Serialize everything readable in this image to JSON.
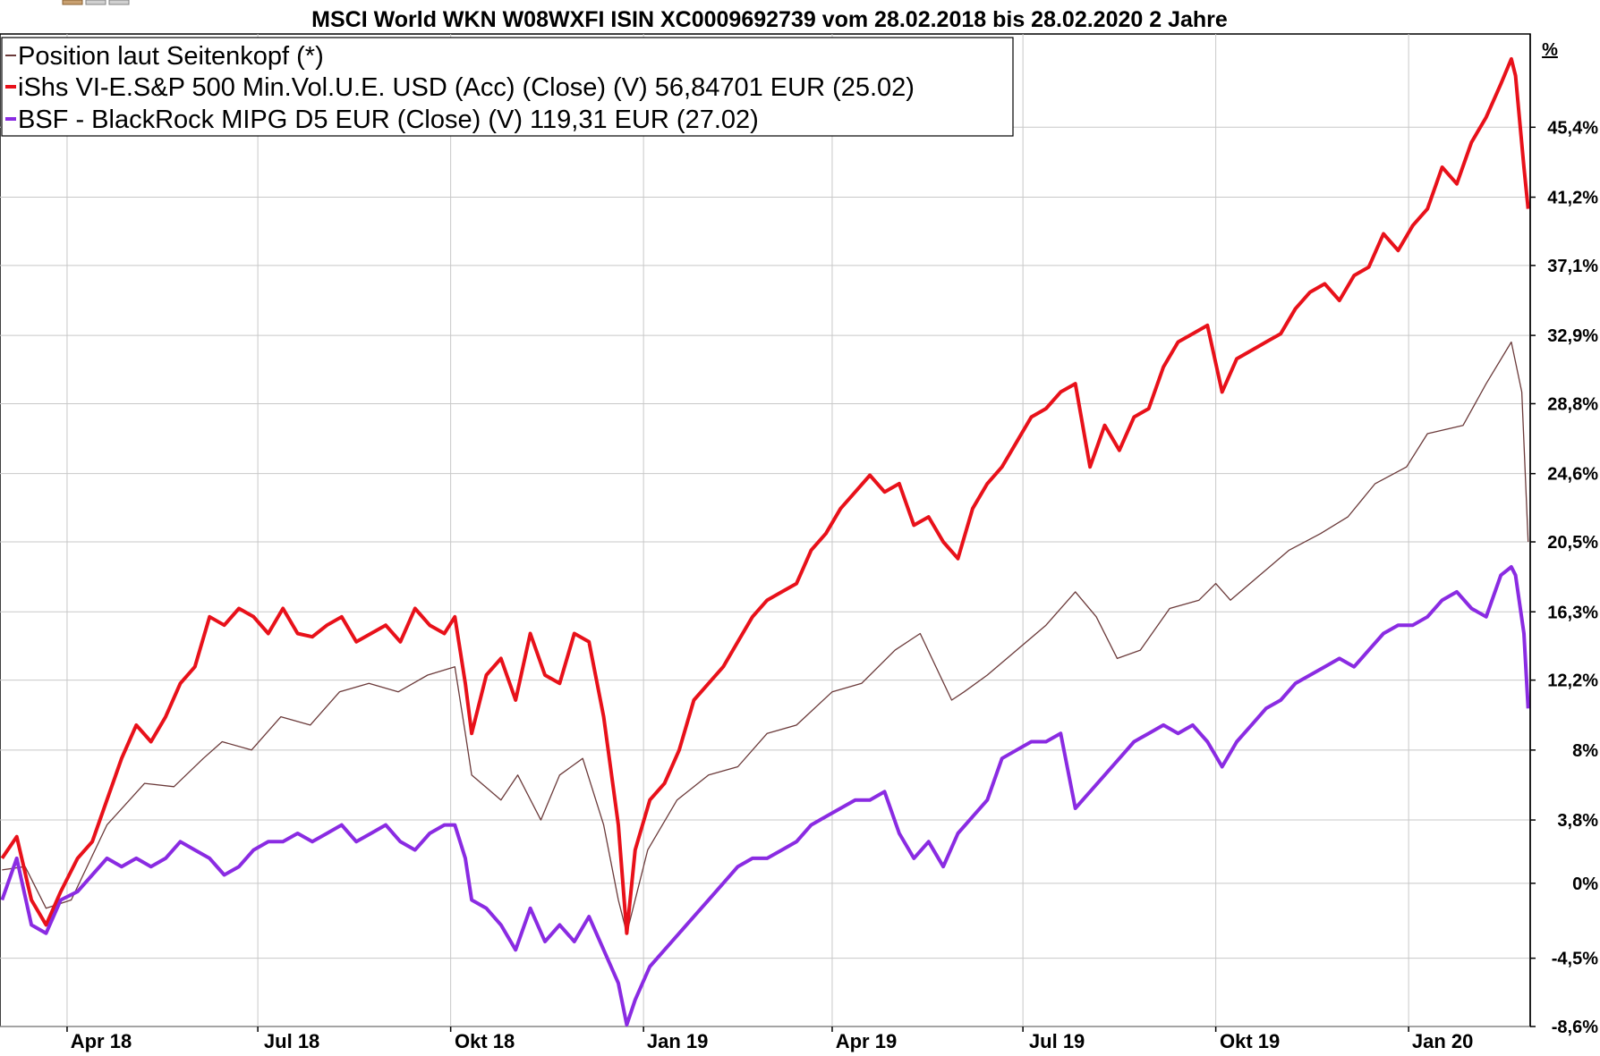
{
  "chart_data": {
    "type": "line",
    "title": "MSCI World WKN W08WXFI ISIN XC0009692739 vom 28.02.2018 bis 28.02.2020 2 Jahre",
    "y_unit": "%",
    "ylim": [
      -8.6,
      51.0
    ],
    "y_ticks": [
      "45,4%",
      "41,2%",
      "37,1%",
      "32,9%",
      "28,8%",
      "24,6%",
      "20,5%",
      "16,3%",
      "12,2%",
      "8%",
      "3,8%",
      "0%",
      "-4,5%",
      "-8,6%"
    ],
    "x_ticks": [
      "Apr 18",
      "Jul 18",
      "Okt 18",
      "Jan 19",
      "Apr 19",
      "Jul 19",
      "Okt 19",
      "Jan 20"
    ],
    "xlim": [
      "2018-02-28",
      "2020-02-28"
    ],
    "grid": true,
    "legend_position": "top-left",
    "legend": [
      {
        "label": "Position laut Seitenkopf (*)",
        "color": "#6b3a3a"
      },
      {
        "label": "iShs VI-E.S&P 500 Min.Vol.U.E. USD (Acc) (Close) (V) 56,84701 EUR (25.02)",
        "color": "#e8111a"
      },
      {
        "label": "BSF - BlackRock MIPG D5 EUR (Close) (V) 119,31 EUR (27.02)",
        "color": "#8a2be2"
      }
    ],
    "series": [
      {
        "name": "Position laut Seitenkopf (*)",
        "color": "#6b3a3a",
        "x": [
          "2018-03-01",
          "2018-03-12",
          "2018-03-22",
          "2018-04-03",
          "2018-04-20",
          "2018-05-08",
          "2018-05-22",
          "2018-06-05",
          "2018-06-14",
          "2018-06-28",
          "2018-07-12",
          "2018-07-26",
          "2018-08-09",
          "2018-08-23",
          "2018-09-06",
          "2018-09-20",
          "2018-10-03",
          "2018-10-08",
          "2018-10-11",
          "2018-10-25",
          "2018-11-02",
          "2018-11-13",
          "2018-11-22",
          "2018-12-03",
          "2018-12-13",
          "2018-12-20",
          "2018-12-24",
          "2019-01-03",
          "2019-01-17",
          "2019-02-01",
          "2019-02-15",
          "2019-03-01",
          "2019-03-15",
          "2019-04-01",
          "2019-04-15",
          "2019-05-01",
          "2019-05-13",
          "2019-05-28",
          "2019-06-03",
          "2019-06-14",
          "2019-06-28",
          "2019-07-12",
          "2019-07-26",
          "2019-08-05",
          "2019-08-15",
          "2019-08-26",
          "2019-09-09",
          "2019-09-23",
          "2019-10-01",
          "2019-10-08",
          "2019-10-22",
          "2019-11-05",
          "2019-11-20",
          "2019-12-03",
          "2019-12-16",
          "2019-12-31",
          "2020-01-10",
          "2020-01-27",
          "2020-02-07",
          "2020-02-19",
          "2020-02-24",
          "2020-02-27"
        ],
        "y": [
          0.8,
          1.0,
          -1.5,
          -1.0,
          3.5,
          6.0,
          5.8,
          7.5,
          8.5,
          8.0,
          10.0,
          9.5,
          11.5,
          12.0,
          11.5,
          12.5,
          13.0,
          9.0,
          6.5,
          5.0,
          6.5,
          3.8,
          6.5,
          7.5,
          3.5,
          -1.0,
          -3.0,
          2.0,
          5.0,
          6.5,
          7.0,
          9.0,
          9.5,
          11.5,
          12.0,
          14.0,
          15.0,
          11.0,
          11.5,
          12.5,
          14.0,
          15.5,
          17.5,
          16.0,
          13.5,
          14.0,
          16.5,
          17.0,
          18.0,
          17.0,
          18.5,
          20.0,
          21.0,
          22.0,
          24.0,
          25.0,
          27.0,
          27.5,
          30.0,
          32.5,
          29.5,
          20.5
        ]
      },
      {
        "name": "iShs VI-E.S&P 500 Min.Vol.U.E. USD (Acc) (Close) (V) 56,84701 EUR (25.02)",
        "color": "#e8111a",
        "x": [
          "2018-03-01",
          "2018-03-08",
          "2018-03-15",
          "2018-03-22",
          "2018-03-29",
          "2018-04-06",
          "2018-04-13",
          "2018-04-20",
          "2018-04-27",
          "2018-05-04",
          "2018-05-11",
          "2018-05-18",
          "2018-05-25",
          "2018-06-01",
          "2018-06-08",
          "2018-06-15",
          "2018-06-22",
          "2018-06-29",
          "2018-07-06",
          "2018-07-13",
          "2018-07-20",
          "2018-07-27",
          "2018-08-03",
          "2018-08-10",
          "2018-08-17",
          "2018-08-24",
          "2018-08-31",
          "2018-09-07",
          "2018-09-14",
          "2018-09-21",
          "2018-09-28",
          "2018-10-03",
          "2018-10-08",
          "2018-10-11",
          "2018-10-18",
          "2018-10-25",
          "2018-11-01",
          "2018-11-08",
          "2018-11-15",
          "2018-11-22",
          "2018-11-29",
          "2018-12-06",
          "2018-12-13",
          "2018-12-20",
          "2018-12-24",
          "2018-12-28",
          "2019-01-04",
          "2019-01-11",
          "2019-01-18",
          "2019-01-25",
          "2019-02-01",
          "2019-02-08",
          "2019-02-15",
          "2019-02-22",
          "2019-03-01",
          "2019-03-08",
          "2019-03-15",
          "2019-03-22",
          "2019-03-29",
          "2019-04-05",
          "2019-04-12",
          "2019-04-19",
          "2019-04-26",
          "2019-05-03",
          "2019-05-10",
          "2019-05-17",
          "2019-05-24",
          "2019-05-31",
          "2019-06-07",
          "2019-06-14",
          "2019-06-21",
          "2019-06-28",
          "2019-07-05",
          "2019-07-12",
          "2019-07-19",
          "2019-07-26",
          "2019-08-02",
          "2019-08-09",
          "2019-08-16",
          "2019-08-23",
          "2019-08-30",
          "2019-09-06",
          "2019-09-13",
          "2019-09-20",
          "2019-09-27",
          "2019-10-04",
          "2019-10-11",
          "2019-10-18",
          "2019-10-25",
          "2019-11-01",
          "2019-11-08",
          "2019-11-15",
          "2019-11-22",
          "2019-11-29",
          "2019-12-06",
          "2019-12-13",
          "2019-12-20",
          "2019-12-27",
          "2020-01-03",
          "2020-01-10",
          "2020-01-17",
          "2020-01-24",
          "2020-01-31",
          "2020-02-07",
          "2020-02-14",
          "2020-02-19",
          "2020-02-21",
          "2020-02-25",
          "2020-02-27"
        ],
        "y": [
          1.5,
          2.8,
          -1.0,
          -2.5,
          -0.5,
          1.5,
          2.5,
          5.0,
          7.5,
          9.5,
          8.5,
          10.0,
          12.0,
          13.0,
          16.0,
          15.5,
          16.5,
          16.0,
          15.0,
          16.5,
          15.0,
          14.8,
          15.5,
          16.0,
          14.5,
          15.0,
          15.5,
          14.5,
          16.5,
          15.5,
          15.0,
          16.0,
          12.0,
          9.0,
          12.5,
          13.5,
          11.0,
          15.0,
          12.5,
          12.0,
          15.0,
          14.5,
          10.0,
          3.5,
          -3.0,
          2.0,
          5.0,
          6.0,
          8.0,
          11.0,
          12.0,
          13.0,
          14.5,
          16.0,
          17.0,
          17.5,
          18.0,
          20.0,
          21.0,
          22.5,
          23.5,
          24.5,
          23.5,
          24.0,
          21.5,
          22.0,
          20.5,
          19.5,
          22.5,
          24.0,
          25.0,
          26.5,
          28.0,
          28.5,
          29.5,
          30.0,
          25.0,
          27.5,
          26.0,
          28.0,
          28.5,
          31.0,
          32.5,
          33.0,
          33.5,
          29.5,
          31.5,
          32.0,
          32.5,
          33.0,
          34.5,
          35.5,
          36.0,
          35.0,
          36.5,
          37.0,
          39.0,
          38.0,
          39.5,
          40.5,
          43.0,
          42.0,
          44.5,
          46.0,
          48.0,
          49.5,
          48.5,
          43.0,
          40.5
        ]
      },
      {
        "name": "BSF - BlackRock MIPG D5 EUR (Close) (V) 119,31 EUR (27.02)",
        "color": "#8a2be2",
        "x": [
          "2018-03-01",
          "2018-03-08",
          "2018-03-15",
          "2018-03-22",
          "2018-03-29",
          "2018-04-06",
          "2018-04-13",
          "2018-04-20",
          "2018-04-27",
          "2018-05-04",
          "2018-05-11",
          "2018-05-18",
          "2018-05-25",
          "2018-06-01",
          "2018-06-08",
          "2018-06-15",
          "2018-06-22",
          "2018-06-29",
          "2018-07-06",
          "2018-07-13",
          "2018-07-20",
          "2018-07-27",
          "2018-08-03",
          "2018-08-10",
          "2018-08-17",
          "2018-08-24",
          "2018-08-31",
          "2018-09-07",
          "2018-09-14",
          "2018-09-21",
          "2018-09-28",
          "2018-10-03",
          "2018-10-08",
          "2018-10-11",
          "2018-10-18",
          "2018-10-25",
          "2018-11-01",
          "2018-11-08",
          "2018-11-15",
          "2018-11-22",
          "2018-11-29",
          "2018-12-06",
          "2018-12-13",
          "2018-12-20",
          "2018-12-24",
          "2018-12-28",
          "2019-01-04",
          "2019-01-11",
          "2019-01-18",
          "2019-01-25",
          "2019-02-01",
          "2019-02-08",
          "2019-02-15",
          "2019-02-22",
          "2019-03-01",
          "2019-03-08",
          "2019-03-15",
          "2019-03-22",
          "2019-03-29",
          "2019-04-05",
          "2019-04-12",
          "2019-04-19",
          "2019-04-26",
          "2019-05-03",
          "2019-05-10",
          "2019-05-17",
          "2019-05-24",
          "2019-05-31",
          "2019-06-07",
          "2019-06-14",
          "2019-06-21",
          "2019-06-28",
          "2019-07-05",
          "2019-07-12",
          "2019-07-19",
          "2019-07-26",
          "2019-08-02",
          "2019-08-09",
          "2019-08-16",
          "2019-08-23",
          "2019-08-30",
          "2019-09-06",
          "2019-09-13",
          "2019-09-20",
          "2019-09-27",
          "2019-10-04",
          "2019-10-11",
          "2019-10-18",
          "2019-10-25",
          "2019-11-01",
          "2019-11-08",
          "2019-11-15",
          "2019-11-22",
          "2019-11-29",
          "2019-12-06",
          "2019-12-13",
          "2019-12-20",
          "2019-12-27",
          "2020-01-03",
          "2020-01-10",
          "2020-01-17",
          "2020-01-24",
          "2020-01-31",
          "2020-02-07",
          "2020-02-14",
          "2020-02-19",
          "2020-02-21",
          "2020-02-25",
          "2020-02-27"
        ],
        "y": [
          -1.0,
          1.5,
          -2.5,
          -3.0,
          -1.0,
          -0.5,
          0.5,
          1.5,
          1.0,
          1.5,
          1.0,
          1.5,
          2.5,
          2.0,
          1.5,
          0.5,
          1.0,
          2.0,
          2.5,
          2.5,
          3.0,
          2.5,
          3.0,
          3.5,
          2.5,
          3.0,
          3.5,
          2.5,
          2.0,
          3.0,
          3.5,
          3.5,
          1.5,
          -1.0,
          -1.5,
          -2.5,
          -4.0,
          -1.5,
          -3.5,
          -2.5,
          -3.5,
          -2.0,
          -4.0,
          -6.0,
          -8.5,
          -7.0,
          -5.0,
          -4.0,
          -3.0,
          -2.0,
          -1.0,
          0.0,
          1.0,
          1.5,
          1.5,
          2.0,
          2.5,
          3.5,
          4.0,
          4.5,
          5.0,
          5.0,
          5.5,
          3.0,
          1.5,
          2.5,
          1.0,
          3.0,
          4.0,
          5.0,
          7.5,
          8.0,
          8.5,
          8.5,
          9.0,
          4.5,
          5.5,
          6.5,
          7.5,
          8.5,
          9.0,
          9.5,
          9.0,
          9.5,
          8.5,
          7.0,
          8.5,
          9.5,
          10.5,
          11.0,
          12.0,
          12.5,
          13.0,
          13.5,
          13.0,
          14.0,
          15.0,
          15.5,
          15.5,
          16.0,
          17.0,
          17.5,
          16.5,
          16.0,
          18.5,
          19.0,
          18.5,
          15.0,
          10.5
        ]
      }
    ]
  }
}
